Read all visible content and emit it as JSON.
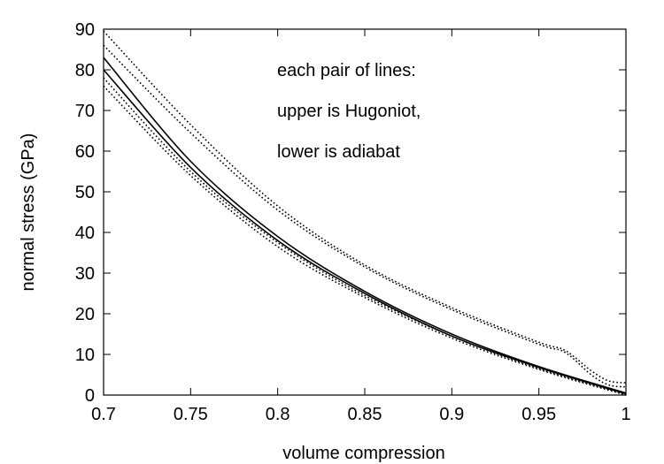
{
  "chart_data": {
    "type": "line",
    "title": "",
    "xlabel": "volume compression",
    "ylabel": "normal stress (GPa)",
    "xlim": [
      0.7,
      1.0
    ],
    "ylim": [
      0,
      90
    ],
    "xticks": [
      0.7,
      0.75,
      0.8,
      0.85,
      0.9,
      0.95,
      1.0
    ],
    "xtick_labels": [
      "0.7",
      "0.75",
      "0.8",
      "0.85",
      "0.9",
      "0.95",
      "1"
    ],
    "yticks": [
      0,
      10,
      20,
      30,
      40,
      50,
      60,
      70,
      80,
      90
    ],
    "ytick_labels": [
      "0",
      "10",
      "20",
      "30",
      "40",
      "50",
      "60",
      "70",
      "80",
      "90"
    ],
    "grid": false,
    "legend": "none",
    "annotations": [
      "each pair of lines:",
      "upper is Hugoniot,",
      "lower is adiabat"
    ],
    "series": [
      {
        "style": "dotted",
        "x": [
          0.7,
          0.75,
          0.8,
          0.85,
          0.9,
          0.95,
          0.965,
          0.98,
          0.99,
          1.0
        ],
        "y": [
          89.5,
          66.5,
          46.5,
          32.0,
          21.5,
          13.0,
          11.0,
          6.0,
          3.5,
          3.0
        ]
      },
      {
        "style": "dotted",
        "x": [
          0.7,
          0.75,
          0.8,
          0.85,
          0.9,
          0.95,
          0.965,
          0.98,
          0.99,
          1.0
        ],
        "y": [
          86.0,
          64.5,
          45.5,
          31.5,
          21.0,
          12.5,
          10.5,
          5.0,
          2.5,
          2.0
        ]
      },
      {
        "style": "solid",
        "x": [
          0.7,
          0.75,
          0.8,
          0.85,
          0.9,
          0.95,
          1.0
        ],
        "y": [
          83.0,
          57.5,
          39.0,
          25.5,
          15.0,
          7.0,
          0.5
        ]
      },
      {
        "style": "solid",
        "x": [
          0.7,
          0.75,
          0.8,
          0.85,
          0.9,
          0.95,
          1.0
        ],
        "y": [
          80.0,
          56.0,
          38.0,
          25.0,
          14.5,
          6.8,
          0.3
        ]
      },
      {
        "style": "dotted",
        "x": [
          0.7,
          0.75,
          0.8,
          0.85,
          0.9,
          0.95,
          1.0
        ],
        "y": [
          78.0,
          55.0,
          37.5,
          24.5,
          14.5,
          6.5,
          0.2
        ]
      },
      {
        "style": "dotted",
        "x": [
          0.7,
          0.75,
          0.8,
          0.85,
          0.9,
          0.95,
          1.0
        ],
        "y": [
          76.0,
          54.0,
          36.5,
          24.0,
          14.0,
          6.3,
          0.0
        ]
      }
    ]
  }
}
